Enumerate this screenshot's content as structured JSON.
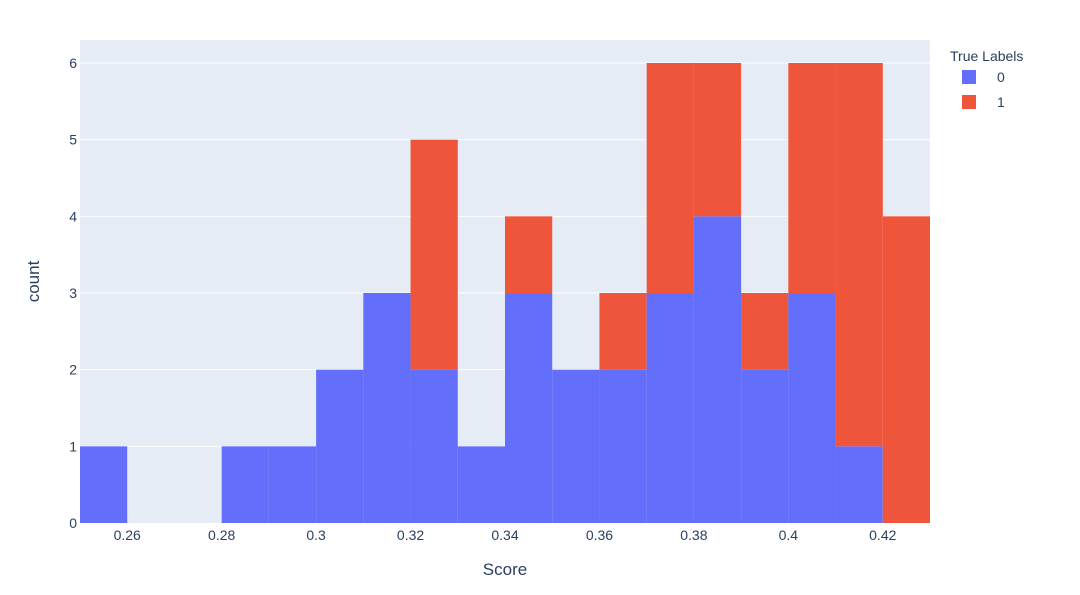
{
  "chart_data": {
    "type": "bar",
    "subtype": "stacked-histogram",
    "xlabel": "Score",
    "ylabel": "count",
    "xlim": [
      0.25,
      0.43
    ],
    "ylim": [
      0,
      6.3
    ],
    "bin_width": 0.01,
    "bin_starts": [
      0.25,
      0.26,
      0.27,
      0.28,
      0.29,
      0.3,
      0.31,
      0.32,
      0.33,
      0.34,
      0.35,
      0.36,
      0.37,
      0.38,
      0.39,
      0.4,
      0.41,
      0.42
    ],
    "series": [
      {
        "name": "0",
        "color": "#636efa",
        "values": [
          1,
          0,
          0,
          1,
          1,
          2,
          3,
          2,
          1,
          3,
          2,
          2,
          3,
          4,
          2,
          3,
          1,
          0
        ]
      },
      {
        "name": "1",
        "color": "#ef553b",
        "values": [
          0,
          0,
          0,
          0,
          0,
          0,
          0,
          3,
          0,
          1,
          0,
          1,
          3,
          2,
          1,
          3,
          5,
          4
        ]
      }
    ],
    "x_ticks": [
      "0.26",
      "0.28",
      "0.3",
      "0.32",
      "0.34",
      "0.36",
      "0.38",
      "0.4",
      "0.42"
    ],
    "x_tick_values": [
      0.26,
      0.28,
      0.3,
      0.32,
      0.34,
      0.36,
      0.38,
      0.4,
      0.42
    ],
    "y_ticks": [
      "0",
      "1",
      "2",
      "3",
      "4",
      "5",
      "6"
    ],
    "y_tick_values": [
      0,
      1,
      2,
      3,
      4,
      5,
      6
    ],
    "legend": {
      "title": "True Labels",
      "position": "top-right",
      "entries": [
        "0",
        "1"
      ]
    },
    "grid": true,
    "plot_background": "#e5ecf6"
  }
}
